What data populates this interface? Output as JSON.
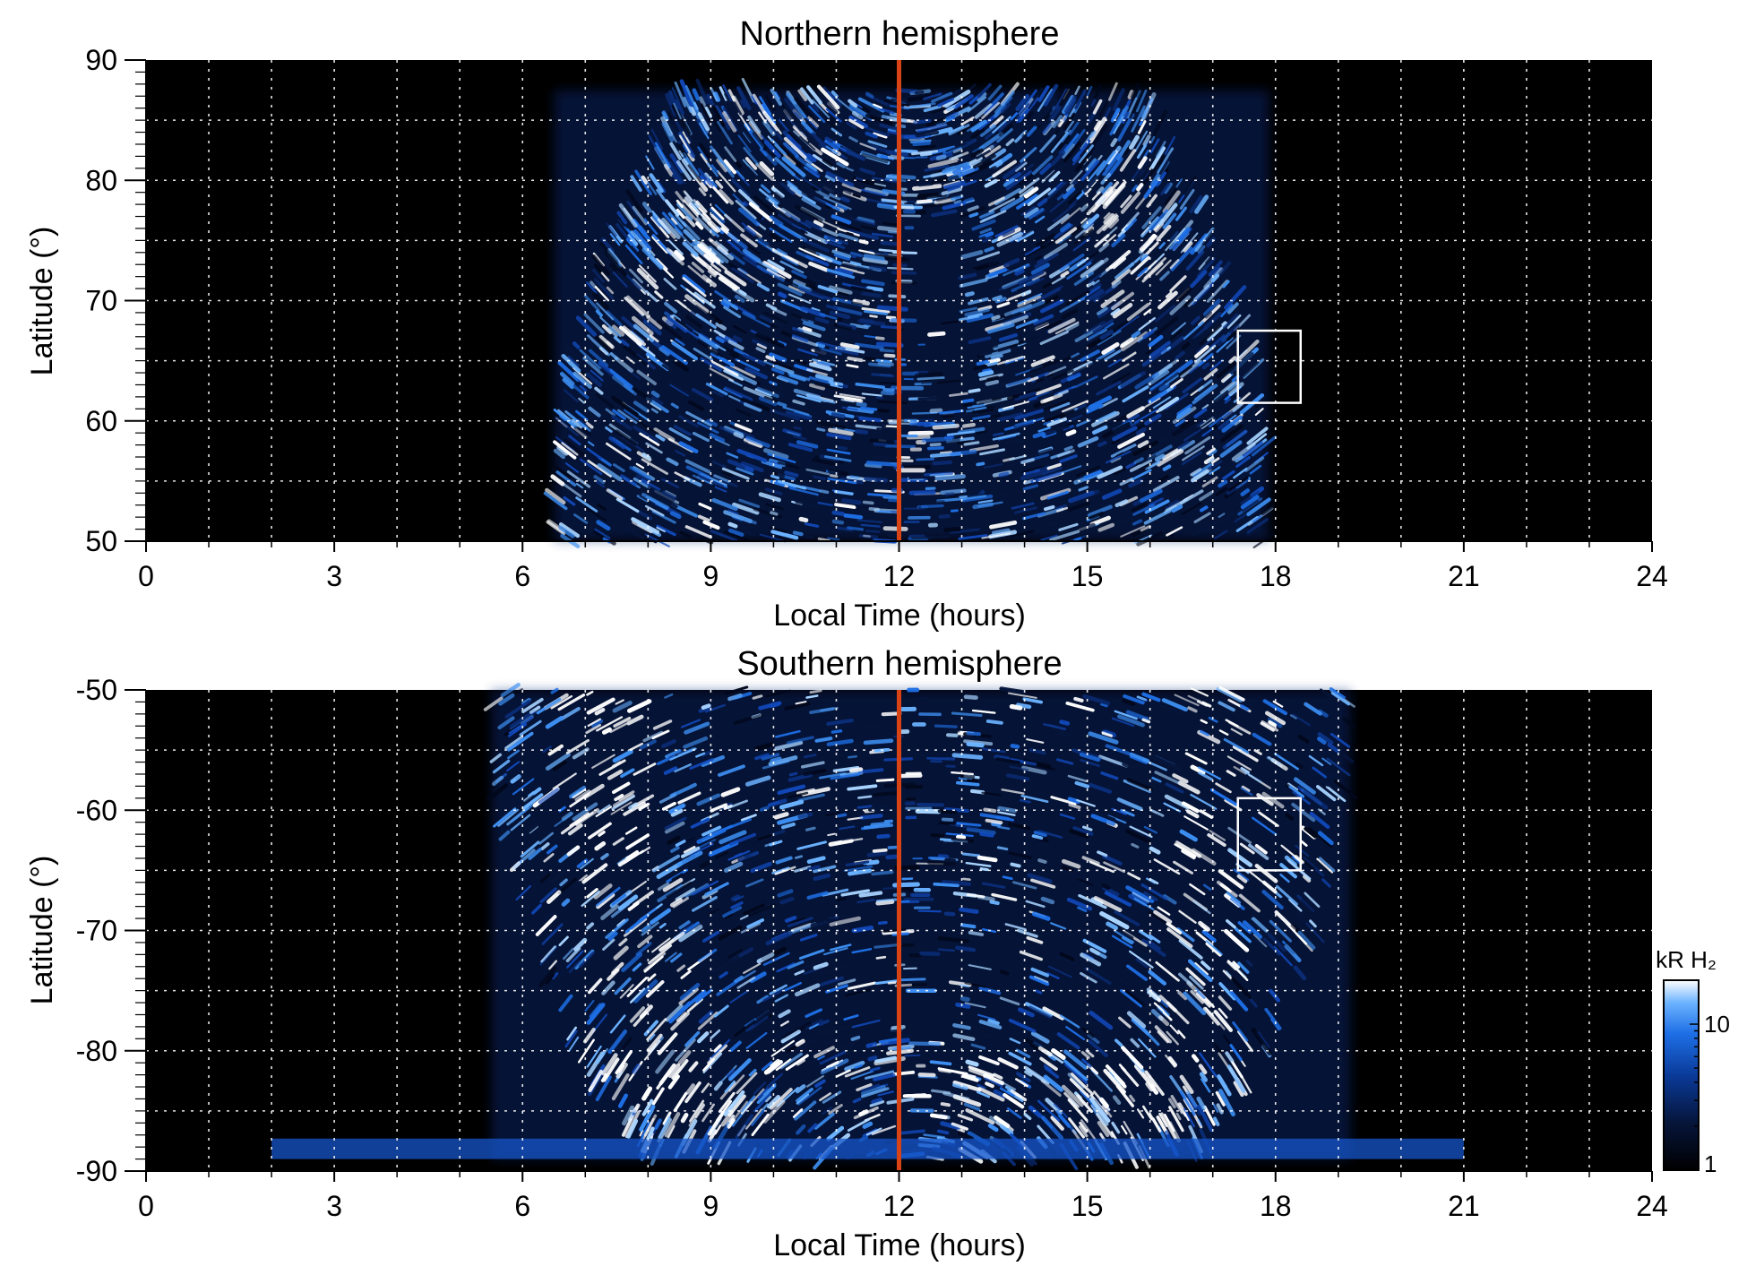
{
  "chart_data": [
    {
      "type": "heatmap",
      "panel": "north",
      "title": "Northern hemisphere",
      "xlabel": "Local Time (hours)",
      "ylabel": "Latitude (°)",
      "xlim": [
        0,
        24
      ],
      "ylim": [
        50,
        90
      ],
      "x_ticks": [
        0,
        3,
        6,
        9,
        12,
        15,
        18,
        21,
        24
      ],
      "y_ticks": [
        50,
        60,
        70,
        80,
        90
      ],
      "grid": true,
      "grid_x_step": 1,
      "grid_y_step": 5,
      "coverage": {
        "lt_start": 6.5,
        "lt_end": 17.9,
        "lat_min": 50,
        "lat_max": 87.5
      },
      "noon_line": {
        "local_time": 12,
        "color": "#d84315"
      },
      "box": {
        "lt": [
          17.4,
          18.4
        ],
        "lat": [
          61.5,
          67.5
        ]
      },
      "emission_features": [
        {
          "name": "dawn-arc",
          "lt": [
            7.0,
            10.5
          ],
          "lat": [
            69,
            80
          ]
        },
        {
          "name": "dusk-arc",
          "lt": [
            14.0,
            17.5
          ],
          "lat": [
            69,
            80
          ]
        },
        {
          "name": "polar-cap-void",
          "lt": [
            12.1,
            13.1
          ],
          "lat": [
            64,
            77
          ]
        }
      ]
    },
    {
      "type": "heatmap",
      "panel": "south",
      "title": "Southern hemisphere",
      "xlabel": "Local Time (hours)",
      "ylabel": "Latitude (°)",
      "xlim": [
        0,
        24
      ],
      "ylim": [
        -90,
        -50
      ],
      "x_ticks": [
        0,
        3,
        6,
        9,
        12,
        15,
        18,
        21,
        24
      ],
      "y_ticks": [
        -90,
        -80,
        -70,
        -60,
        -50
      ],
      "grid": true,
      "grid_x_step": 1,
      "grid_y_step": 5,
      "coverage": {
        "lt_start": 5.5,
        "lt_end": 19.2,
        "lat_min": -89,
        "lat_max": -50
      },
      "noon_line": {
        "local_time": 12,
        "color": "#d84315"
      },
      "box": {
        "lt": [
          17.4,
          18.4
        ],
        "lat": [
          -65,
          -59
        ]
      },
      "emission_features": [
        {
          "name": "dawn-arc",
          "lt": [
            6.0,
            7.5
          ],
          "lat": [
            -80,
            -50
          ]
        },
        {
          "name": "dusk-arc",
          "lt": [
            16.5,
            18.0
          ],
          "lat": [
            -80,
            -50
          ]
        },
        {
          "name": "inner-ring",
          "lt": [
            8.0,
            16.0
          ],
          "lat": [
            -80,
            -50
          ]
        },
        {
          "name": "pole-band",
          "lt": [
            2.0,
            21.0
          ],
          "lat": [
            -89,
            -87
          ]
        }
      ]
    }
  ],
  "colorbar": {
    "label": "kR H₂",
    "scale": "log",
    "range": [
      1,
      20
    ],
    "tick_values": [
      1,
      10
    ],
    "tick_labels": [
      "1",
      "10"
    ],
    "colors": [
      "#000000",
      "#06153a",
      "#0a3a99",
      "#1e6fe6",
      "#6ab2ff",
      "#ffffff"
    ]
  }
}
